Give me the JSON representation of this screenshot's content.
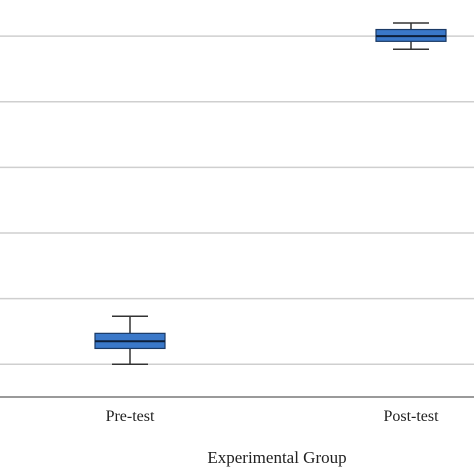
{
  "chart_data": {
    "type": "box",
    "title": "",
    "xlabel": "Experimental Group",
    "ylabel": "",
    "categories": [
      "Pre-test",
      "Post-test"
    ],
    "series": [
      {
        "values": [
          {
            "category": "Pre-test",
            "whisker_low": 1.0,
            "q1": 1.24,
            "median": 1.35,
            "q3": 1.47,
            "whisker_high": 1.73
          },
          {
            "category": "Post-test",
            "whisker_low": 5.8,
            "q1": 5.92,
            "median": 6.0,
            "q3": 6.1,
            "whisker_high": 6.2
          }
        ]
      }
    ],
    "ylim": [
      0.5,
      6.55
    ],
    "gridlines": [
      1,
      2,
      3,
      4,
      5,
      6
    ],
    "grid": true,
    "legend": "none",
    "colors": {
      "box_fill": "#3a78c9",
      "box_stroke": "#1a3a66",
      "median": "#0d1f3a",
      "whisker": "#333333",
      "grid": "#cfcfcf",
      "axis": "#9a9a9a"
    }
  }
}
